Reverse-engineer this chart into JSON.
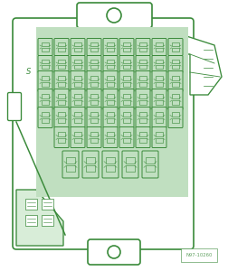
{
  "bg_color": "#ffffff",
  "line_color": "#3a8a3a",
  "fuse_fill": "#c0dfc0",
  "fuse_outline": "#3a8a3a",
  "fuse_inner_fill": "#a8cca8",
  "light_green": "#d8edd8",
  "watermark_text": "N97-10260",
  "fig_width": 2.52,
  "fig_height": 3.0,
  "dpi": 100,
  "outer_lw": 1.2,
  "fuse_lw": 0.7
}
